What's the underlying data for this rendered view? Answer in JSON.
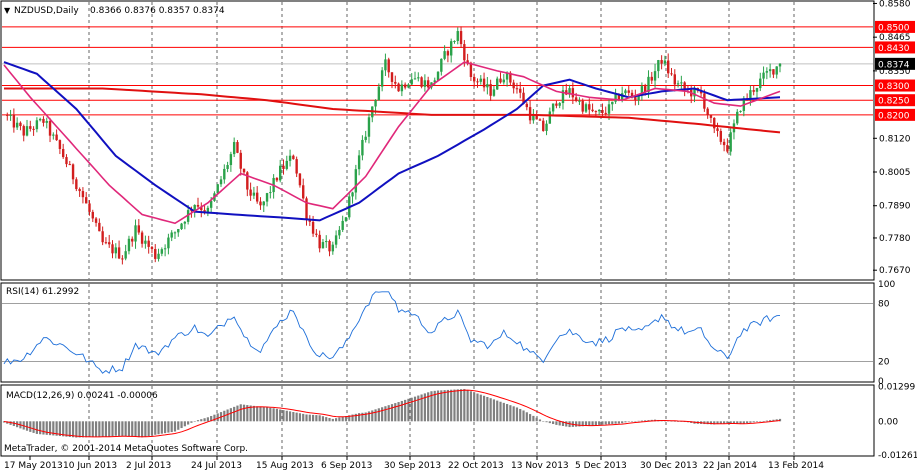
{
  "chart_data": [
    {
      "type": "candlestick",
      "title": "NZDUSD,Daily",
      "ohlc_text": "0.8366 0.8376 0.8357 0.8374",
      "symbol": "NZDUSD",
      "timeframe": "Daily",
      "ylim": [
        0.764,
        0.8585
      ],
      "y_ticks": [
        "0.8580",
        "0.8465",
        "0.8350",
        "0.8120",
        "0.8005",
        "0.7890",
        "0.7780",
        "0.7670"
      ],
      "x_labels": [
        "17 May 2013",
        "10 Jun 2013",
        "2 Jul 2013",
        "24 Jul 2013",
        "15 Aug 2013",
        "6 Sep 2013",
        "30 Sep 2013",
        "22 Oct 2013",
        "13 Nov 2013",
        "5 Dec 2013",
        "30 Dec 2013",
        "22 Jan 2014",
        "13 Feb 2014"
      ],
      "n_bars": 195,
      "levels": [
        {
          "value": 0.85,
          "label": "0.8500",
          "color": "#ff0000"
        },
        {
          "value": 0.843,
          "label": "0.8430",
          "color": "#ff0000"
        },
        {
          "value": 0.83,
          "label": "0.8300",
          "color": "#ff0000"
        },
        {
          "value": 0.825,
          "label": "0.8250",
          "color": "#ff0000"
        },
        {
          "value": 0.82,
          "label": "0.8200",
          "color": "#ff0000"
        }
      ],
      "current_price": {
        "value": 0.8374,
        "label": "0.8374"
      },
      "price_path": [
        [
          0,
          0.82
        ],
        [
          6,
          0.814
        ],
        [
          12,
          0.818
        ],
        [
          18,
          0.806
        ],
        [
          24,
          0.792
        ],
        [
          30,
          0.776
        ],
        [
          36,
          0.772
        ],
        [
          40,
          0.781
        ],
        [
          46,
          0.772
        ],
        [
          52,
          0.78
        ],
        [
          58,
          0.79
        ],
        [
          62,
          0.787
        ],
        [
          66,
          0.798
        ],
        [
          70,
          0.809
        ],
        [
          74,
          0.795
        ],
        [
          78,
          0.788
        ],
        [
          84,
          0.801
        ],
        [
          88,
          0.806
        ],
        [
          92,
          0.786
        ],
        [
          96,
          0.776
        ],
        [
          100,
          0.774
        ],
        [
          104,
          0.786
        ],
        [
          108,
          0.805
        ],
        [
          112,
          0.823
        ],
        [
          116,
          0.837
        ],
        [
          120,
          0.829
        ],
        [
          124,
          0.833
        ],
        [
          130,
          0.83
        ],
        [
          134,
          0.84
        ],
        [
          138,
          0.848
        ],
        [
          142,
          0.833
        ],
        [
          148,
          0.828
        ],
        [
          152,
          0.834
        ],
        [
          156,
          0.829
        ],
        [
          160,
          0.82
        ],
        [
          164,
          0.815
        ],
        [
          168,
          0.825
        ],
        [
          172,
          0.828
        ],
        [
          176,
          0.823
        ],
        [
          180,
          0.82
        ],
        [
          184,
          0.822
        ],
        [
          188,
          0.828
        ],
        [
          192,
          0.826
        ],
        [
          196,
          0.831
        ],
        [
          200,
          0.839
        ],
        [
          204,
          0.831
        ],
        [
          208,
          0.828
        ],
        [
          212,
          0.827
        ],
        [
          216,
          0.814
        ],
        [
          220,
          0.809
        ],
        [
          224,
          0.823
        ],
        [
          228,
          0.829
        ],
        [
          232,
          0.834
        ],
        [
          236,
          0.8374
        ]
      ],
      "indicator_ma_red_path": [
        [
          0,
          0.829
        ],
        [
          30,
          0.829
        ],
        [
          60,
          0.827
        ],
        [
          80,
          0.825
        ],
        [
          100,
          0.822
        ],
        [
          130,
          0.82
        ],
        [
          160,
          0.82
        ],
        [
          190,
          0.819
        ],
        [
          210,
          0.817
        ],
        [
          236,
          0.814
        ]
      ],
      "indicator_ma_blue_path": [
        [
          0,
          0.838
        ],
        [
          10,
          0.834
        ],
        [
          22,
          0.822
        ],
        [
          34,
          0.806
        ],
        [
          46,
          0.796
        ],
        [
          58,
          0.787
        ],
        [
          70,
          0.786
        ],
        [
          84,
          0.785
        ],
        [
          96,
          0.784
        ],
        [
          108,
          0.79
        ],
        [
          120,
          0.8
        ],
        [
          132,
          0.806
        ],
        [
          146,
          0.815
        ],
        [
          156,
          0.822
        ],
        [
          164,
          0.83
        ],
        [
          172,
          0.832
        ],
        [
          180,
          0.829
        ],
        [
          190,
          0.826
        ],
        [
          200,
          0.828
        ],
        [
          210,
          0.829
        ],
        [
          220,
          0.825
        ],
        [
          236,
          0.826
        ]
      ],
      "indicator_ma_pink_path": [
        [
          0,
          0.837
        ],
        [
          8,
          0.826
        ],
        [
          16,
          0.816
        ],
        [
          24,
          0.806
        ],
        [
          32,
          0.796
        ],
        [
          42,
          0.786
        ],
        [
          52,
          0.783
        ],
        [
          62,
          0.79
        ],
        [
          72,
          0.8
        ],
        [
          82,
          0.796
        ],
        [
          92,
          0.79
        ],
        [
          100,
          0.788
        ],
        [
          110,
          0.799
        ],
        [
          120,
          0.816
        ],
        [
          130,
          0.83
        ],
        [
          140,
          0.838
        ],
        [
          150,
          0.835
        ],
        [
          158,
          0.833
        ],
        [
          168,
          0.828
        ],
        [
          178,
          0.826
        ],
        [
          188,
          0.825
        ],
        [
          198,
          0.829
        ],
        [
          208,
          0.828
        ],
        [
          216,
          0.824
        ],
        [
          224,
          0.823
        ],
        [
          236,
          0.828
        ]
      ]
    },
    {
      "type": "line",
      "title": "RSI(14) 61.2992",
      "ylim": [
        0,
        100
      ],
      "y_ticks": [
        "100",
        "80",
        "20",
        "0"
      ],
      "levels": [
        80,
        20
      ],
      "series": [
        {
          "name": "RSI(14)",
          "color": "#1e6fd9"
        }
      ]
    },
    {
      "type": "bar",
      "title": "MACD(12,26,9) 0.00241 -0.00006",
      "ylim": [
        -0.0126,
        0.0132
      ],
      "y_ticks": [
        "0.01299",
        "0.00",
        "-0.01261"
      ],
      "series": [
        {
          "name": "MACD",
          "color": "#808080"
        },
        {
          "name": "Signal",
          "color": "#ff0000"
        }
      ]
    }
  ],
  "copyright": "MetaTrader, © 2001-2014 MetaQuotes Software Corp."
}
